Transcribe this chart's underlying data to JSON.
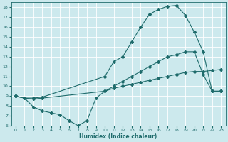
{
  "xlabel": "Humidex (Indice chaleur)",
  "xlim": [
    -0.5,
    23.5
  ],
  "ylim": [
    6,
    18.5
  ],
  "yticks": [
    6,
    7,
    8,
    9,
    10,
    11,
    12,
    13,
    14,
    15,
    16,
    17,
    18
  ],
  "xticks": [
    0,
    1,
    2,
    3,
    4,
    5,
    6,
    7,
    8,
    9,
    10,
    11,
    12,
    13,
    14,
    15,
    16,
    17,
    18,
    19,
    20,
    21,
    22,
    23
  ],
  "bg_color": "#cce9ed",
  "line_color": "#1e6b6b",
  "grid_color": "#ffffff",
  "curve1_x": [
    0,
    1,
    2,
    3,
    10,
    11,
    12,
    13,
    14,
    15,
    16,
    17,
    18,
    19,
    20,
    21,
    22,
    23
  ],
  "curve1_y": [
    9.0,
    8.8,
    8.8,
    8.9,
    11.0,
    12.5,
    13.0,
    14.5,
    16.0,
    17.3,
    17.8,
    18.1,
    18.2,
    17.2,
    15.5,
    13.5,
    9.5,
    9.5
  ],
  "curve2_x": [
    0,
    1,
    2,
    3,
    10,
    11,
    12,
    13,
    14,
    15,
    16,
    17,
    18,
    19,
    20,
    21,
    22,
    23
  ],
  "curve2_y": [
    9.0,
    8.8,
    8.7,
    8.8,
    9.5,
    10.0,
    10.5,
    11.0,
    11.5,
    12.0,
    12.5,
    13.0,
    13.2,
    13.5,
    13.5,
    11.2,
    9.5,
    9.5
  ],
  "curve3_x": [
    0,
    1,
    2,
    3,
    4,
    5,
    6,
    7,
    8,
    9,
    10,
    11,
    12,
    13,
    14,
    15,
    16,
    17,
    18,
    19,
    20,
    21,
    22,
    23
  ],
  "curve3_y": [
    9.0,
    8.8,
    7.9,
    7.5,
    7.3,
    7.1,
    6.5,
    6.0,
    6.5,
    8.8,
    9.5,
    9.8,
    10.0,
    10.2,
    10.4,
    10.6,
    10.8,
    11.0,
    11.2,
    11.4,
    11.5,
    11.5,
    11.6,
    11.7
  ]
}
